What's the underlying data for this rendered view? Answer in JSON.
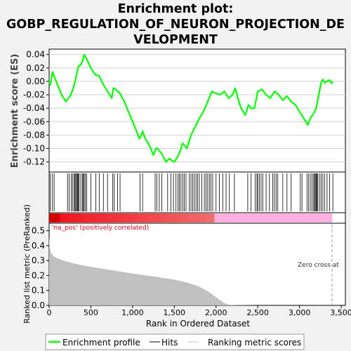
{
  "title_lines": [
    "Enrichment plot:",
    "GOBP_REGULATION_OF_NEURON_PROJECTION_DE",
    "VELOPMENT"
  ],
  "legend": {
    "profile": "Enrichment profile",
    "hits": "Hits",
    "ranking": "Ranking metric scores"
  },
  "annotations": {
    "pos_label": "'na_pos' (positively correlated)",
    "zero_cross": "Zero cross at"
  },
  "colors": {
    "profile": "#00ff00",
    "ranking_fill": "#c0c0c0",
    "pos_bar": "#e0001a",
    "neg_bar": "#ffb0e0",
    "background": "#f2f2f2"
  },
  "chart_data": [
    {
      "type": "line",
      "name": "enrichment-profile",
      "ylabel": "Enrichment score (ES)",
      "ylim": [
        -0.135,
        0.048
      ],
      "xlim": [
        0,
        3550
      ],
      "yticks": [
        "0.04",
        "0.02",
        "0.00",
        "-0.02",
        "-0.04",
        "-0.06",
        "-0.08",
        "-0.10",
        "-0.12"
      ],
      "ytick_values": [
        0.04,
        0.02,
        0.0,
        -0.02,
        -0.04,
        -0.06,
        -0.08,
        -0.1,
        -0.12
      ],
      "grid": true,
      "x": [
        0,
        15,
        40,
        60,
        100,
        150,
        200,
        230,
        260,
        290,
        320,
        350,
        380,
        400,
        420,
        450,
        500,
        550,
        600,
        650,
        700,
        750,
        770,
        800,
        850,
        900,
        950,
        1000,
        1050,
        1080,
        1100,
        1120,
        1150,
        1200,
        1250,
        1280,
        1300,
        1350,
        1400,
        1440,
        1470,
        1500,
        1550,
        1580,
        1600,
        1650,
        1700,
        1750,
        1800,
        1850,
        1900,
        1950,
        2000,
        2050,
        2100,
        2150,
        2200,
        2230,
        2260,
        2300,
        2350,
        2390,
        2420,
        2460,
        2500,
        2550,
        2600,
        2650,
        2700,
        2750,
        2800,
        2850,
        2900,
        2950,
        3000,
        3050,
        3100,
        3130,
        3160,
        3200,
        3230,
        3260,
        3280,
        3300,
        3330,
        3360,
        3380,
        3400
      ],
      "y": [
        0.0,
        -0.005,
        0.014,
        0.008,
        -0.005,
        -0.02,
        -0.03,
        -0.025,
        -0.02,
        -0.01,
        0.005,
        0.022,
        0.025,
        0.03,
        0.04,
        0.033,
        0.02,
        0.01,
        0.008,
        -0.005,
        -0.015,
        -0.025,
        -0.01,
        -0.012,
        -0.018,
        -0.03,
        -0.045,
        -0.06,
        -0.075,
        -0.085,
        -0.082,
        -0.074,
        -0.085,
        -0.095,
        -0.11,
        -0.1,
        -0.1,
        -0.108,
        -0.12,
        -0.115,
        -0.118,
        -0.12,
        -0.11,
        -0.1,
        -0.092,
        -0.1,
        -0.08,
        -0.068,
        -0.055,
        -0.045,
        -0.03,
        -0.015,
        -0.018,
        -0.02,
        -0.015,
        -0.025,
        -0.02,
        -0.01,
        -0.025,
        -0.04,
        -0.05,
        -0.035,
        -0.04,
        -0.04,
        -0.015,
        -0.012,
        -0.02,
        -0.025,
        -0.015,
        -0.02,
        -0.028,
        -0.022,
        -0.03,
        -0.035,
        -0.045,
        -0.055,
        -0.065,
        -0.055,
        -0.05,
        -0.04,
        -0.02,
        -0.002,
        0.003,
        -0.002,
        0.0,
        0.002,
        -0.003,
        0.0
      ]
    },
    {
      "type": "area",
      "name": "ranked-list-metric",
      "xlabel": "Rank in Ordered Dataset",
      "ylabel": "Ranked list metric (PreRanked)",
      "ylim": [
        0,
        0.55
      ],
      "xlim": [
        0,
        3550
      ],
      "yticks": [
        "0.0",
        "0.1",
        "0.2",
        "0.3",
        "0.4",
        "0.5"
      ],
      "ytick_values": [
        0,
        0.1,
        0.2,
        0.3,
        0.4,
        0.5
      ],
      "xticks": [
        "0",
        "500",
        "1,000",
        "1,500",
        "2,000",
        "2,500",
        "3,000",
        "3,500"
      ],
      "xtick_values": [
        0,
        500,
        1000,
        1500,
        2000,
        2500,
        3000,
        3500
      ],
      "zero_cross": 3390,
      "x": [
        0,
        10,
        25,
        50,
        100,
        150,
        200,
        300,
        400,
        500,
        700,
        900,
        1100,
        1300,
        1500,
        1600,
        1700,
        1800,
        1900,
        1950,
        2000,
        2050,
        2100,
        2150,
        2200,
        2300,
        2500,
        3000,
        3400
      ],
      "y": [
        0.46,
        0.38,
        0.35,
        0.33,
        0.315,
        0.305,
        0.295,
        0.28,
        0.268,
        0.258,
        0.24,
        0.222,
        0.205,
        0.19,
        0.172,
        0.16,
        0.145,
        0.125,
        0.095,
        0.075,
        0.055,
        0.033,
        0.015,
        0.006,
        0.002,
        0.001,
        0.0,
        0.0,
        0.0
      ]
    },
    {
      "type": "scatter",
      "name": "hits",
      "xlim": [
        0,
        3550
      ],
      "x": [
        15,
        40,
        60,
        220,
        240,
        265,
        280,
        300,
        310,
        320,
        330,
        340,
        350,
        360,
        380,
        400,
        410,
        420,
        435,
        450,
        500,
        560,
        600,
        650,
        700,
        760,
        780,
        820,
        850,
        1090,
        1120,
        1270,
        1290,
        1320,
        1350,
        1420,
        1460,
        1490,
        1520,
        1545,
        1560,
        1580,
        1600,
        1620,
        1640,
        1680,
        1700,
        1720,
        1740,
        1760,
        1780,
        1800,
        1830,
        1860,
        1880,
        1900,
        1920,
        1940,
        1960,
        2000,
        2040,
        2080,
        2120,
        2160,
        2220,
        2380,
        2420,
        2470,
        2490,
        2500,
        2520,
        2540,
        2560,
        2600,
        2640,
        2680,
        2700,
        2720,
        2740,
        2800,
        2850,
        2900,
        3010,
        3030,
        3090,
        3110,
        3130,
        3150,
        3170,
        3180,
        3190,
        3200,
        3210,
        3220,
        3240,
        3260,
        3280,
        3300,
        3330,
        3360,
        3400
      ]
    }
  ]
}
